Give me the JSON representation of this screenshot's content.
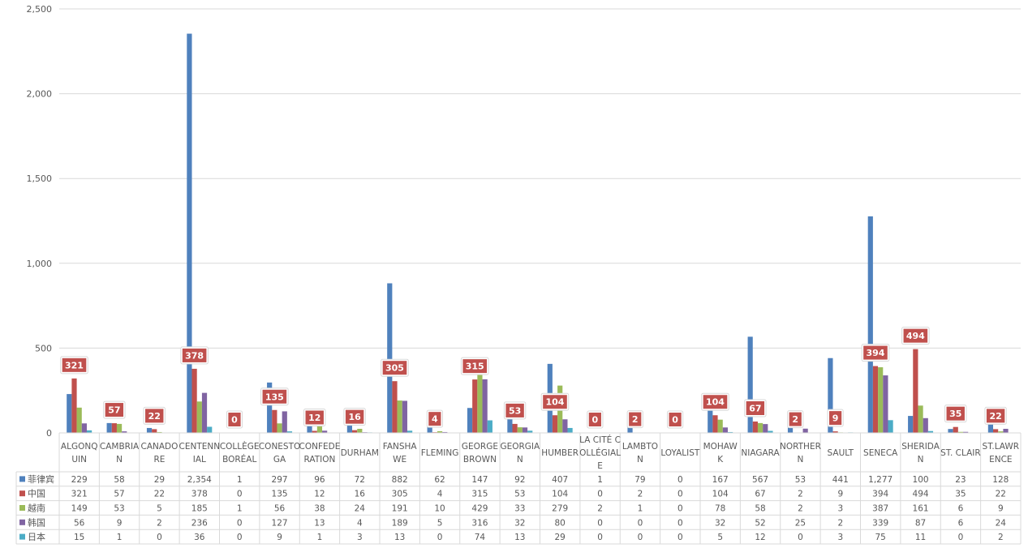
{
  "chart_data": {
    "type": "bar",
    "title": "",
    "xlabel": "",
    "ylabel": "",
    "ylim": [
      0,
      2500
    ],
    "yticks": [
      "0",
      "500",
      "1,000",
      "1,500",
      "2,000",
      "2,500"
    ],
    "ytick_values": [
      0,
      500,
      1000,
      1500,
      2000,
      2500
    ],
    "grid": true,
    "legend": "data-table",
    "categories": [
      [
        "ALGONQ",
        "UIN"
      ],
      [
        "CAMBRIA",
        "N"
      ],
      [
        "CANADO",
        "RE"
      ],
      [
        "CENTENN",
        "IAL"
      ],
      [
        "COLLÈGE",
        "BORÉAL"
      ],
      [
        "CONESTO",
        "GA"
      ],
      [
        "CONFEDE",
        "RATION"
      ],
      [
        "DURHAM"
      ],
      [
        "FANSHA",
        "WE"
      ],
      [
        "FLEMING"
      ],
      [
        "GEORGE",
        "BROWN"
      ],
      [
        "GEORGIA",
        "N"
      ],
      [
        "HUMBER"
      ],
      [
        "LA CITÉ C",
        "OLLÉGIAL",
        "E"
      ],
      [
        "LAMBTO",
        "N"
      ],
      [
        "LOYALIST"
      ],
      [
        "MOHAW",
        "K"
      ],
      [
        "NIAGARA"
      ],
      [
        "NORTHER",
        "N"
      ],
      [
        "SAULT"
      ],
      [
        "SENECA"
      ],
      [
        "SHERIDA",
        "N"
      ],
      [
        "ST. CLAIR"
      ],
      [
        "ST.LAWR",
        "ENCE"
      ]
    ],
    "series": [
      {
        "name": "菲律宾",
        "color": "#4F81BD",
        "values": [
          229,
          58,
          29,
          2354,
          1,
          297,
          96,
          72,
          882,
          62,
          147,
          92,
          407,
          1,
          79,
          0,
          167,
          567,
          53,
          441,
          1277,
          100,
          23,
          128
        ]
      },
      {
        "name": "中国",
        "color": "#C0504D",
        "values": [
          321,
          57,
          22,
          378,
          0,
          135,
          12,
          16,
          305,
          4,
          315,
          53,
          104,
          0,
          2,
          0,
          104,
          67,
          2,
          9,
          394,
          494,
          35,
          22
        ]
      },
      {
        "name": "越南",
        "color": "#9BBB59",
        "values": [
          149,
          53,
          5,
          185,
          1,
          56,
          38,
          24,
          191,
          10,
          429,
          33,
          279,
          2,
          1,
          0,
          78,
          58,
          2,
          3,
          387,
          161,
          6,
          9
        ]
      },
      {
        "name": "韩国",
        "color": "#8064A2",
        "values": [
          56,
          9,
          2,
          236,
          0,
          127,
          13,
          4,
          189,
          5,
          316,
          32,
          80,
          0,
          0,
          0,
          32,
          52,
          25,
          2,
          339,
          87,
          6,
          24
        ]
      },
      {
        "name": "日本",
        "color": "#4BACC6",
        "values": [
          15,
          1,
          0,
          36,
          0,
          9,
          1,
          3,
          13,
          0,
          74,
          13,
          29,
          0,
          0,
          0,
          5,
          12,
          0,
          3,
          75,
          11,
          0,
          2
        ]
      }
    ],
    "table_values": [
      [
        "229",
        "58",
        "29",
        "2,354",
        "1",
        "297",
        "96",
        "72",
        "882",
        "62",
        "147",
        "92",
        "407",
        "1",
        "79",
        "0",
        "167",
        "567",
        "53",
        "441",
        "1,277",
        "100",
        "23",
        "128"
      ],
      [
        "321",
        "57",
        "22",
        "378",
        "0",
        "135",
        "12",
        "16",
        "305",
        "4",
        "315",
        "53",
        "104",
        "0",
        "2",
        "0",
        "104",
        "67",
        "2",
        "9",
        "394",
        "494",
        "35",
        "22"
      ],
      [
        "149",
        "53",
        "5",
        "185",
        "1",
        "56",
        "38",
        "24",
        "191",
        "10",
        "429",
        "33",
        "279",
        "2",
        "1",
        "0",
        "78",
        "58",
        "2",
        "3",
        "387",
        "161",
        "6",
        "9"
      ],
      [
        "56",
        "9",
        "2",
        "236",
        "0",
        "127",
        "13",
        "4",
        "189",
        "5",
        "316",
        "32",
        "80",
        "0",
        "0",
        "0",
        "32",
        "52",
        "25",
        "2",
        "339",
        "87",
        "6",
        "24"
      ],
      [
        "15",
        "1",
        "0",
        "36",
        "0",
        "9",
        "1",
        "3",
        "13",
        "0",
        "74",
        "13",
        "29",
        "0",
        "0",
        "0",
        "5",
        "12",
        "0",
        "3",
        "75",
        "11",
        "0",
        "2"
      ]
    ],
    "data_labels_series": "中国",
    "data_labels_color": "#C0504D"
  }
}
